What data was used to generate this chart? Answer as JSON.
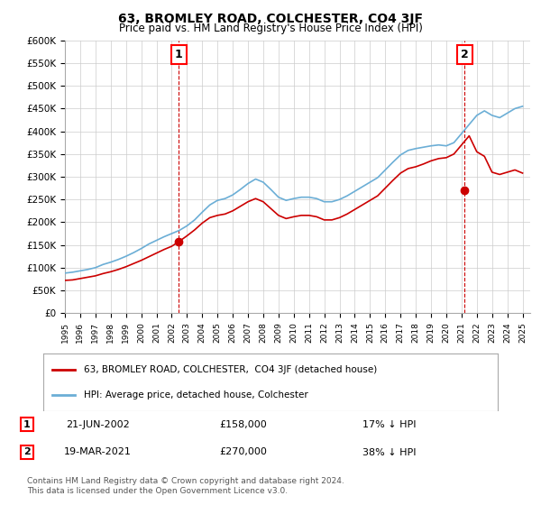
{
  "title": "63, BROMLEY ROAD, COLCHESTER, CO4 3JF",
  "subtitle": "Price paid vs. HM Land Registry's House Price Index (HPI)",
  "legend_label_red": "63, BROMLEY ROAD, COLCHESTER,  CO4 3JF (detached house)",
  "legend_label_blue": "HPI: Average price, detached house, Colchester",
  "annotation1_label": "1",
  "annotation1_date": "21-JUN-2002",
  "annotation1_price": "£158,000",
  "annotation1_hpi": "17% ↓ HPI",
  "annotation2_label": "2",
  "annotation2_date": "19-MAR-2021",
  "annotation2_price": "£270,000",
  "annotation2_hpi": "38% ↓ HPI",
  "footer": "Contains HM Land Registry data © Crown copyright and database right 2024.\nThis data is licensed under the Open Government Licence v3.0.",
  "sale1_year": 2002.47,
  "sale1_price": 158000,
  "sale2_year": 2021.21,
  "sale2_price": 270000,
  "hpi_color": "#6baed6",
  "sale_color": "#cc0000",
  "dashed_color": "#cc0000",
  "marker_color": "#cc0000",
  "ylim_min": 0,
  "ylim_max": 600000,
  "xlim_min": 1995,
  "xlim_max": 2025.5,
  "background_color": "#ffffff",
  "grid_color": "#cccccc"
}
